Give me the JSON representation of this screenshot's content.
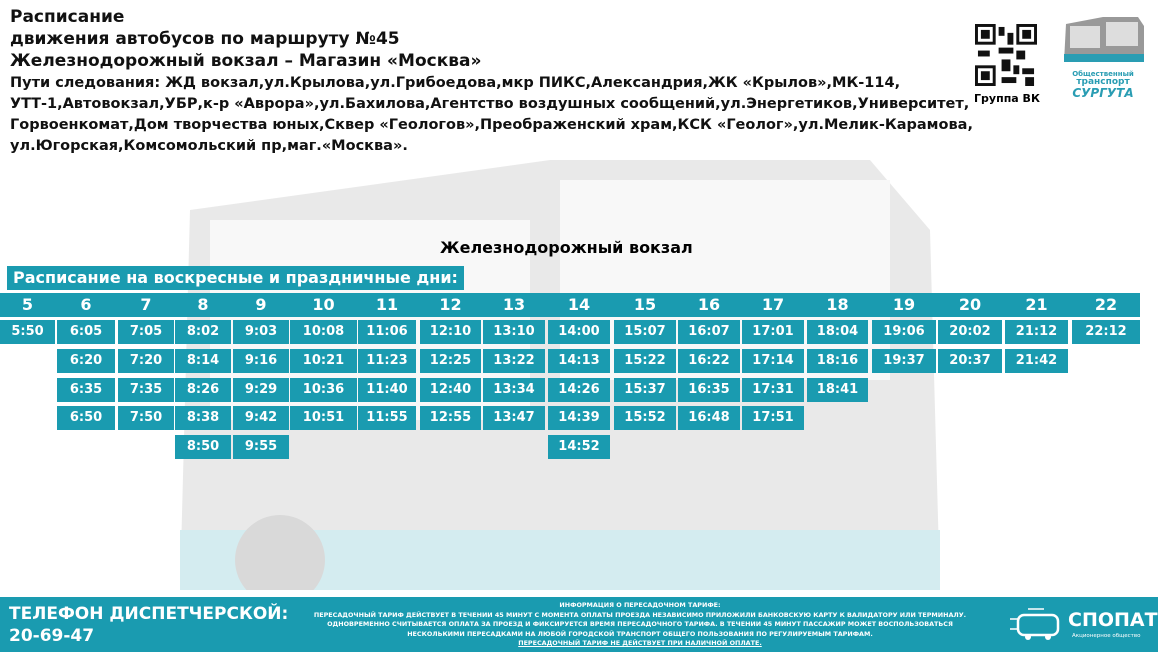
{
  "header": {
    "line1": "Расписание",
    "line2": "движения автобусов по маршруту №45",
    "line3": "Железнодорожный вокзал – Магазин «Москва»",
    "route": "Пути следования: ЖД вокзал,ул.Крылова,ул.Грибоедова,мкр ПИКС,Александрия,ЖК «Крылов»,МК-114, УТТ-1,Автовокзал,УБР,к-р «Аврора»,ул.Бахилова,Агентство воздушных сообщений,ул.Энергетиков,Университет, Горвоенкомат,Дом творчества юных,Сквер «Геологов»,Преображенский храм,КСК «Геолог»,ул.Мелик-Карамова, ул.Югорская,Комсомольский пр,маг.«Москва»."
  },
  "qr": {
    "caption": "Группа ВК"
  },
  "brand_logo": {
    "line1": "Общественный",
    "line2": "транспорт",
    "line3": "СУРГУТА"
  },
  "stop": "Железнодорожный вокзал",
  "day_type": "Расписание на воскресные и праздничные дни:",
  "accent_color": "#1a9bb0",
  "schedule": [
    {
      "hour": "5",
      "times": [
        "5:50"
      ]
    },
    {
      "hour": "6",
      "times": [
        "6:05",
        "6:20",
        "6:35",
        "6:50"
      ]
    },
    {
      "hour": "7",
      "times": [
        "7:05",
        "7:20",
        "7:35",
        "7:50"
      ]
    },
    {
      "hour": "8",
      "times": [
        "8:02",
        "8:14",
        "8:26",
        "8:38",
        "8:50"
      ]
    },
    {
      "hour": "9",
      "times": [
        "9:03",
        "9:16",
        "9:29",
        "9:42",
        "9:55"
      ]
    },
    {
      "hour": "10",
      "times": [
        "10:08",
        "10:21",
        "10:36",
        "10:51"
      ]
    },
    {
      "hour": "11",
      "times": [
        "11:06",
        "11:23",
        "11:40",
        "11:55"
      ]
    },
    {
      "hour": "12",
      "times": [
        "12:10",
        "12:25",
        "12:40",
        "12:55"
      ]
    },
    {
      "hour": "13",
      "times": [
        "13:10",
        "13:22",
        "13:34",
        "13:47"
      ]
    },
    {
      "hour": "14",
      "times": [
        "14:00",
        "14:13",
        "14:26",
        "14:39",
        "14:52"
      ]
    },
    {
      "hour": "15",
      "times": [
        "15:07",
        "15:22",
        "15:37",
        "15:52"
      ]
    },
    {
      "hour": "16",
      "times": [
        "16:07",
        "16:22",
        "16:35",
        "16:48"
      ]
    },
    {
      "hour": "17",
      "times": [
        "17:01",
        "17:14",
        "17:31",
        "17:51"
      ]
    },
    {
      "hour": "18",
      "times": [
        "18:04",
        "18:16",
        "18:41"
      ]
    },
    {
      "hour": "19",
      "times": [
        "19:06",
        "19:37"
      ]
    },
    {
      "hour": "20",
      "times": [
        "20:02",
        "20:37"
      ]
    },
    {
      "hour": "21",
      "times": [
        "21:12",
        "21:42"
      ]
    },
    {
      "hour": "22",
      "times": [
        "22:12"
      ]
    }
  ],
  "footer": {
    "phone_label": "ТЕЛЕФОН ДИСПЕТЧЕРСКОЙ:",
    "phone": "20-69-47",
    "info_title": "ИНФОРМАЦИЯ О ПЕРЕСАДОЧНОМ ТАРИФЕ:",
    "info_1": "ПЕРЕСАДОЧНЫЙ ТАРИФ ДЕЙСТВУЕТ В ТЕЧЕНИИ 45 МИНУТ С МОМЕНТА ОПЛАТЫ ПРОЕЗДА НЕЗАВИСИМО ПРИЛОЖИЛИ БАНКОВСКУЮ КАРТУ К ВАЛИДАТОРУ ИЛИ ТЕРМИНАЛУ.",
    "info_2": "ОДНОВРЕМЕННО СЧИТЫВАЕТСЯ ОПЛАТА ЗА ПРОЕЗД И ФИКСИРУЕТСЯ ВРЕМЯ ПЕРЕСАДОЧНОГО ТАРИФА. В ТЕЧЕНИИ 45 МИНУТ ПАССАЖИР МОЖЕТ ВОСПОЛЬЗОВАТЬСЯ",
    "info_3": "НЕСКОЛЬКИМИ ПЕРЕСАДКАМИ НА ЛЮБОЙ ГОРОДСКОЙ ТРАНСПОРТ ОБЩЕГО ПОЛЬЗОВАНИЯ ПО РЕГУЛИРУЕМЫМ ТАРИФАМ.",
    "info_4": "ПЕРЕСАДОЧНЫЙ ТАРИФ НЕ ДЕЙСТВУЕТ ПРИ НАЛИЧНОЙ ОПЛАТЕ.",
    "company": "СПОПАТ",
    "company_sub": "Акционерное общество"
  }
}
